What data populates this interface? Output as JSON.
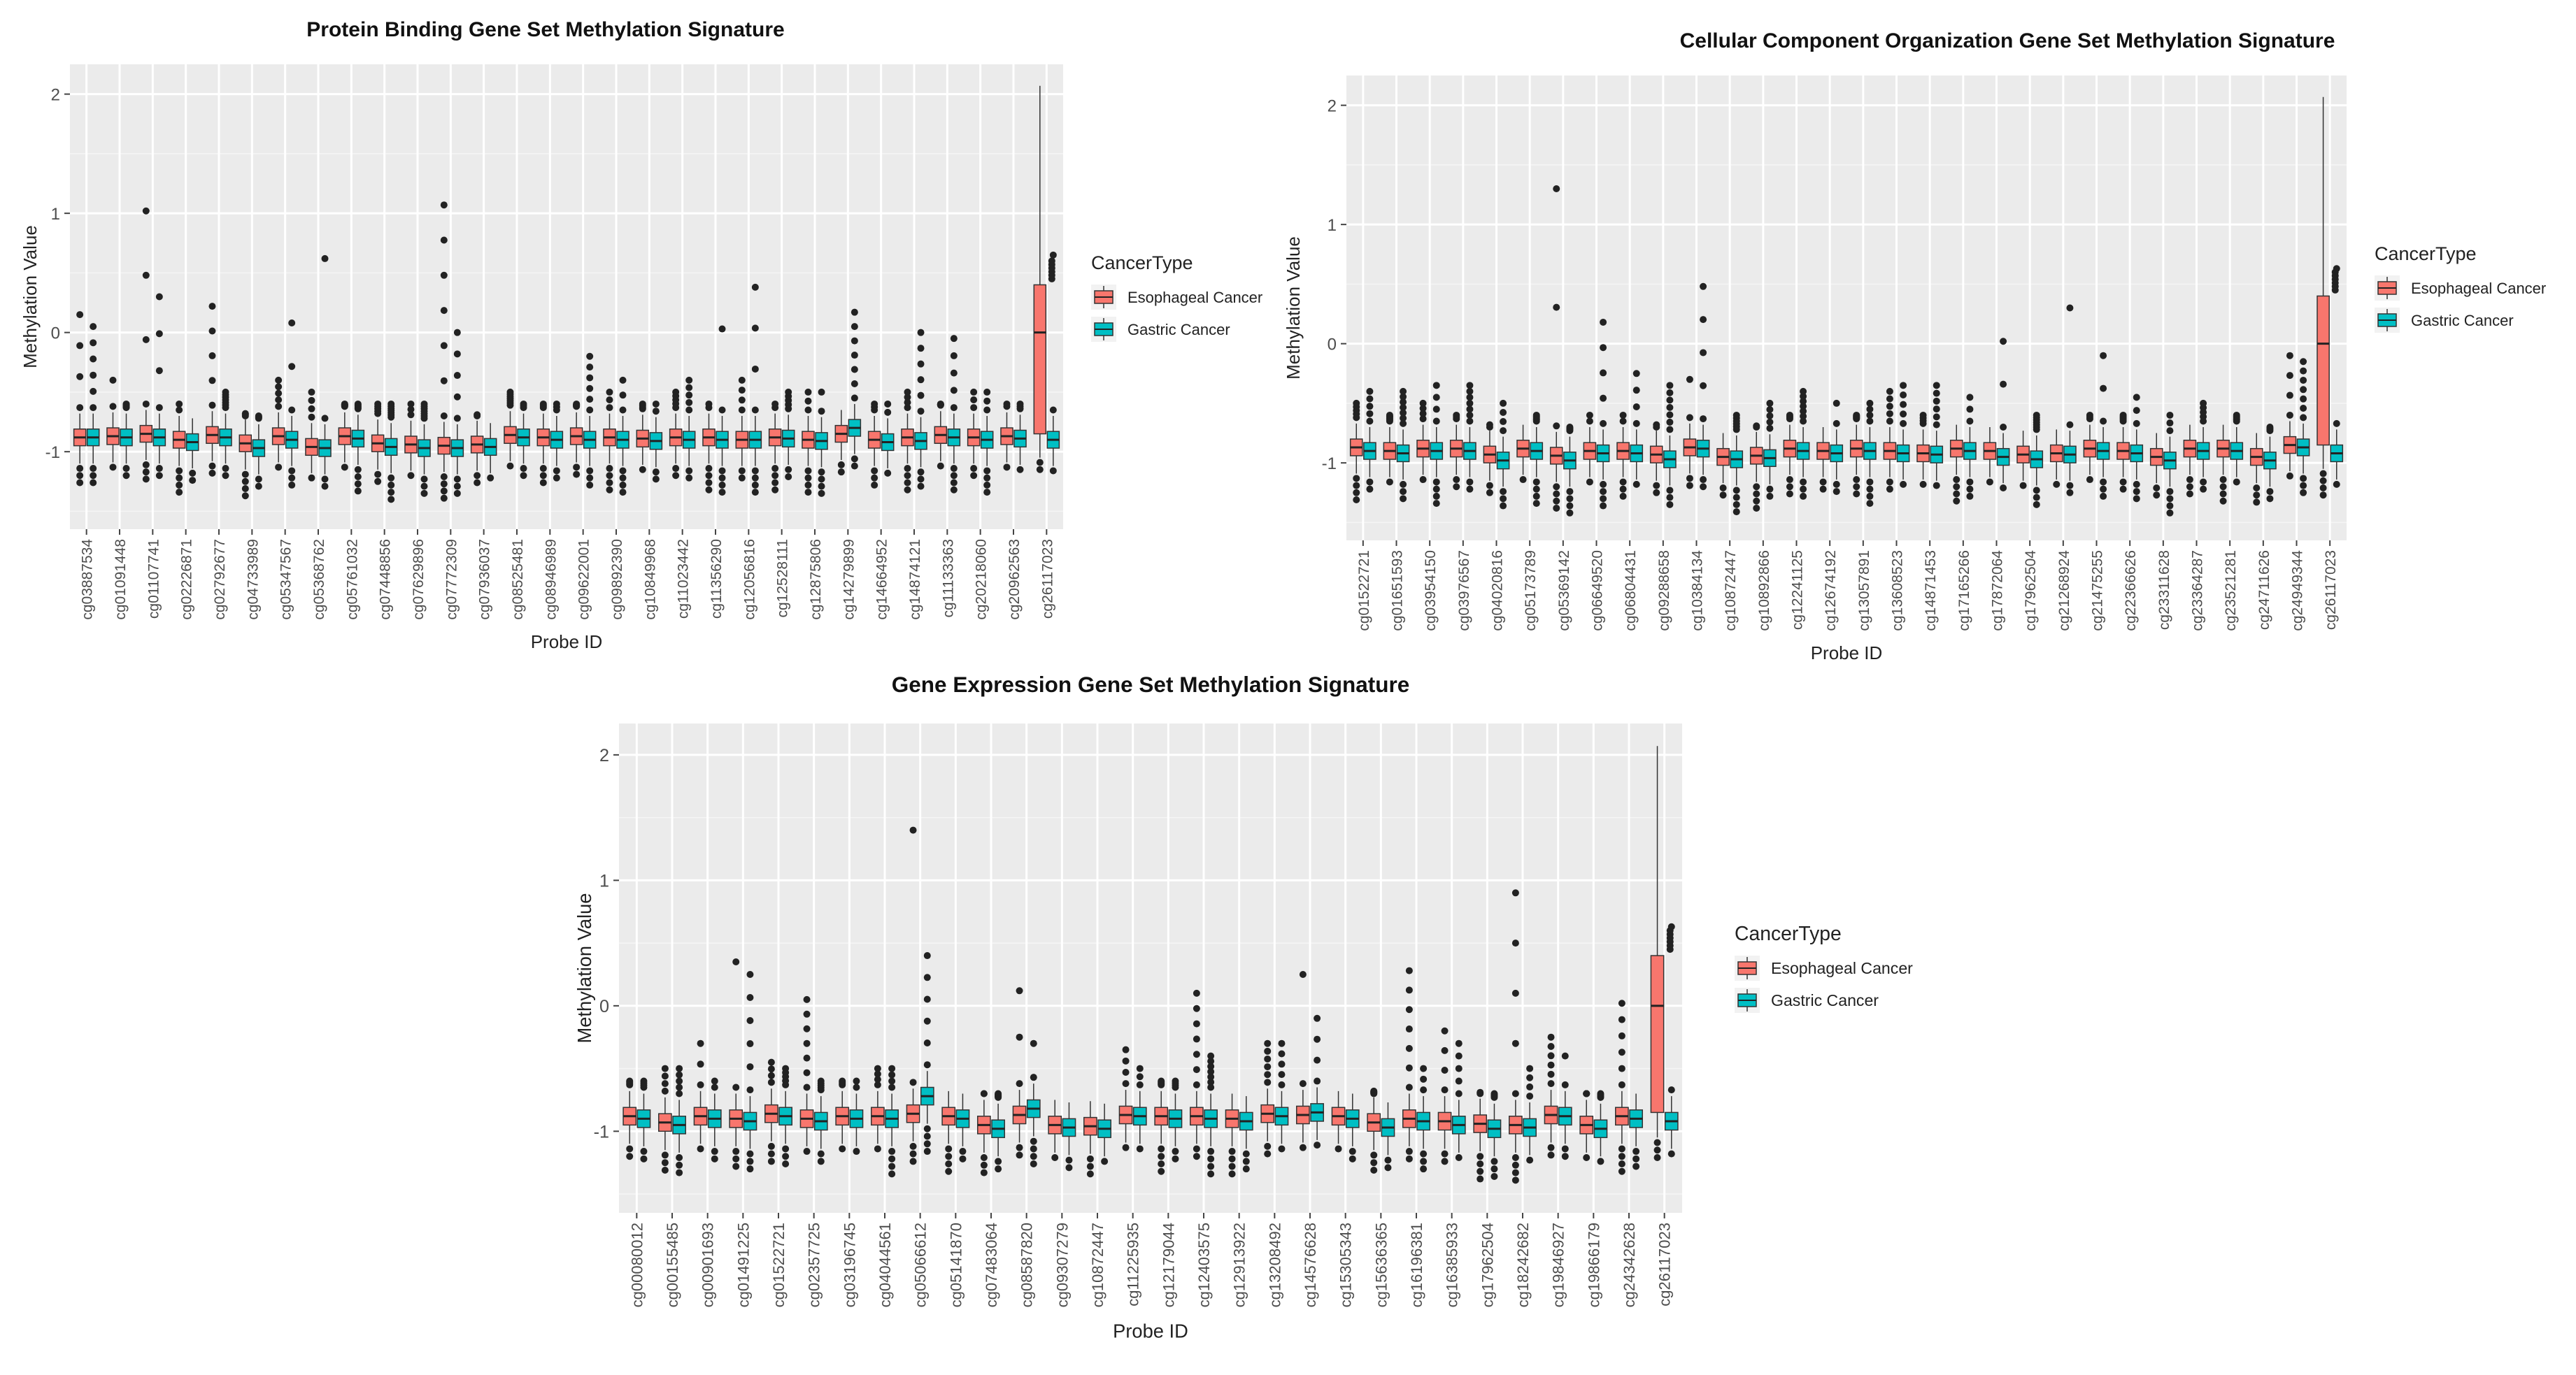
{
  "chart_data": [
    {
      "type": "boxplot",
      "title": "Protein Binding Gene Set Methylation Signature",
      "xlabel": "Probe ID",
      "ylabel": "Methylation Value",
      "ylim": [
        -1.65,
        2.25
      ],
      "yticks": [
        -1,
        0,
        1,
        2
      ],
      "legend_title": "CancerType",
      "series": [
        {
          "name": "Esophageal Cancer",
          "color": "#F8766D"
        },
        {
          "name": "Gastric Cancer",
          "color": "#00BFC4"
        }
      ],
      "categories": [
        "cg03887534",
        "cg01091448",
        "cg01107741",
        "cg02226871",
        "cg02792677",
        "cg04733989",
        "cg05347567",
        "cg05368762",
        "cg05761032",
        "cg07448856",
        "cg07629896",
        "cg07772309",
        "cg07936037",
        "cg08525481",
        "cg08946989",
        "cg09622001",
        "cg09892390",
        "cg10849968",
        "cg11023442",
        "cg11356290",
        "cg12056816",
        "cg12528111",
        "cg12875806",
        "cg14279899",
        "cg14664952",
        "cg14874121",
        "cg11133363",
        "cg20218060",
        "cg20962563",
        "cg26117023"
      ],
      "medians": {
        "Esophageal Cancer": [
          -0.88,
          -0.87,
          -0.85,
          -0.9,
          -0.86,
          -0.93,
          -0.87,
          -0.96,
          -0.87,
          -0.93,
          -0.94,
          -0.95,
          -0.94,
          -0.86,
          -0.88,
          -0.87,
          -0.88,
          -0.89,
          -0.88,
          -0.88,
          -0.9,
          -0.88,
          -0.9,
          -0.85,
          -0.9,
          -0.88,
          -0.86,
          -0.88,
          -0.87,
          0.0
        ],
        "Gastric Cancer": [
          -0.88,
          -0.88,
          -0.88,
          -0.92,
          -0.88,
          -0.97,
          -0.9,
          -0.97,
          -0.89,
          -0.96,
          -0.97,
          -0.97,
          -0.96,
          -0.88,
          -0.9,
          -0.9,
          -0.9,
          -0.91,
          -0.9,
          -0.9,
          -0.9,
          -0.89,
          -0.91,
          -0.8,
          -0.92,
          -0.91,
          -0.88,
          -0.9,
          -0.89,
          -0.9
        ]
      },
      "outlier_max": {
        "Esophageal Cancer": [
          0.15,
          -0.4,
          1.02,
          -0.6,
          0.22,
          -0.7,
          -0.4,
          -0.5,
          -0.6,
          -0.6,
          -0.6,
          1.07,
          -0.7,
          -0.5,
          -0.6,
          -0.6,
          -0.5,
          -0.6,
          -0.5,
          -0.6,
          -0.4,
          -0.6,
          -0.5,
          -0.7,
          -0.6,
          -0.5,
          -0.6,
          -0.5,
          -0.6,
          2.07
        ],
        "Gastric Cancer": [
          0.05,
          -0.6,
          0.3,
          -0.7,
          -0.5,
          -0.7,
          0.08,
          0.62,
          -0.6,
          -0.6,
          -0.6,
          0.0,
          -0.8,
          -0.6,
          -0.6,
          -0.2,
          -0.4,
          -0.6,
          -0.4,
          0.03,
          0.38,
          -0.5,
          -0.5,
          0.17,
          -0.6,
          0.0,
          -0.05,
          -0.5,
          -0.6,
          0.65
        ]
      }
    },
    {
      "type": "boxplot",
      "title": "Cellular Component Organization Gene Set Methylation Signature",
      "xlabel": "Probe ID",
      "ylabel": "Methylation Value",
      "ylim": [
        -1.65,
        2.25
      ],
      "yticks": [
        -1,
        0,
        1,
        2
      ],
      "legend_title": "CancerType",
      "series": [
        {
          "name": "Esophageal Cancer",
          "color": "#F8766D"
        },
        {
          "name": "Gastric Cancer",
          "color": "#00BFC4"
        }
      ],
      "categories": [
        "cg01522721",
        "cg01651593",
        "cg03954150",
        "cg03976567",
        "cg04020816",
        "cg05173789",
        "cg05369142",
        "cg06649520",
        "cg06804431",
        "cg09288658",
        "cg10384134",
        "cg10872447",
        "cg10892866",
        "cg12241125",
        "cg12674192",
        "cg13057891",
        "cg13608523",
        "cg14871453",
        "cg17165266",
        "cg17872064",
        "cg17962504",
        "cg21268924",
        "cg21475255",
        "cg22366626",
        "cg23311628",
        "cg23364287",
        "cg23521281",
        "cg24711626",
        "cg24949344",
        "cg26117023"
      ],
      "medians": {
        "Esophageal Cancer": [
          -0.87,
          -0.9,
          -0.88,
          -0.88,
          -0.93,
          -0.88,
          -0.94,
          -0.9,
          -0.9,
          -0.93,
          -0.87,
          -0.95,
          -0.94,
          -0.88,
          -0.9,
          -0.88,
          -0.9,
          -0.92,
          -0.88,
          -0.9,
          -0.93,
          -0.92,
          -0.88,
          -0.9,
          -0.95,
          -0.88,
          -0.88,
          -0.95,
          -0.85,
          0.0
        ],
        "Gastric Cancer": [
          -0.9,
          -0.92,
          -0.9,
          -0.9,
          -0.98,
          -0.9,
          -0.98,
          -0.92,
          -0.92,
          -0.97,
          -0.88,
          -0.97,
          -0.96,
          -0.9,
          -0.92,
          -0.9,
          -0.92,
          -0.93,
          -0.9,
          -0.95,
          -0.97,
          -0.93,
          -0.9,
          -0.92,
          -0.98,
          -0.9,
          -0.9,
          -0.98,
          -0.87,
          -0.92
        ]
      },
      "outlier_max": {
        "Esophageal Cancer": [
          -0.5,
          -0.6,
          -0.5,
          -0.6,
          -0.7,
          -0.7,
          1.3,
          -0.6,
          -0.6,
          -0.7,
          -0.3,
          -0.8,
          -0.7,
          -0.6,
          -0.7,
          -0.6,
          -0.4,
          -0.6,
          -0.7,
          -0.7,
          -0.8,
          -0.7,
          -0.6,
          -0.6,
          -0.8,
          -0.7,
          -0.7,
          -0.8,
          -0.1,
          2.07
        ],
        "Gastric Cancer": [
          -0.4,
          -0.4,
          -0.35,
          -0.35,
          -0.5,
          -0.6,
          -0.7,
          0.18,
          -0.25,
          -0.35,
          0.48,
          -0.6,
          -0.5,
          -0.4,
          -0.5,
          -0.5,
          -0.35,
          -0.35,
          -0.45,
          0.02,
          -0.6,
          0.3,
          -0.1,
          -0.45,
          -0.6,
          -0.5,
          -0.6,
          -0.7,
          -0.15,
          0.63
        ]
      }
    },
    {
      "type": "boxplot",
      "title": "Gene Expression Gene Set Methylation Signature",
      "xlabel": "Probe ID",
      "ylabel": "Methylation Value",
      "ylim": [
        -1.65,
        2.25
      ],
      "yticks": [
        -1,
        0,
        1,
        2
      ],
      "legend_title": "CancerType",
      "series": [
        {
          "name": "Esophageal Cancer",
          "color": "#F8766D"
        },
        {
          "name": "Gastric Cancer",
          "color": "#00BFC4"
        }
      ],
      "categories": [
        "cg00080012",
        "cg00155485",
        "cg00901693",
        "cg01491225",
        "cg01522721",
        "cg02357725",
        "cg03196745",
        "cg04044561",
        "cg05066612",
        "cg05141870",
        "cg07483064",
        "cg08587820",
        "cg09307279",
        "cg10872447",
        "cg11225935",
        "cg12179044",
        "cg12403575",
        "cg12913922",
        "cg13208492",
        "cg14576628",
        "cg15305343",
        "cg15636365",
        "cg16196381",
        "cg16385933",
        "cg17962504",
        "cg18242682",
        "cg19846927",
        "cg19866179",
        "cg24342628",
        "cg26117023"
      ],
      "medians": {
        "Esophageal Cancer": [
          -0.88,
          -0.93,
          -0.88,
          -0.9,
          -0.86,
          -0.9,
          -0.88,
          -0.88,
          -0.86,
          -0.88,
          -0.95,
          -0.87,
          -0.95,
          -0.96,
          -0.87,
          -0.88,
          -0.88,
          -0.9,
          -0.86,
          -0.87,
          -0.88,
          -0.93,
          -0.9,
          -0.92,
          -0.94,
          -0.95,
          -0.87,
          -0.95,
          -0.88,
          0.0
        ],
        "Gastric Cancer": [
          -0.9,
          -0.95,
          -0.9,
          -0.92,
          -0.88,
          -0.92,
          -0.9,
          -0.9,
          -0.72,
          -0.9,
          -0.98,
          -0.82,
          -0.97,
          -0.98,
          -0.88,
          -0.9,
          -0.9,
          -0.92,
          -0.88,
          -0.85,
          -0.9,
          -0.97,
          -0.92,
          -0.95,
          -0.98,
          -0.97,
          -0.88,
          -0.98,
          -0.9,
          -0.92
        ]
      },
      "outlier_max": {
        "Esophageal Cancer": [
          -0.6,
          -0.5,
          -0.3,
          0.35,
          -0.45,
          0.05,
          -0.6,
          -0.5,
          1.4,
          -0.7,
          -0.7,
          0.12,
          -0.8,
          -0.8,
          -0.35,
          -0.6,
          0.1,
          -0.8,
          -0.3,
          0.25,
          -0.7,
          -0.7,
          0.28,
          -0.2,
          -0.7,
          0.9,
          -0.25,
          -0.7,
          0.02,
          2.07
        ],
        "Gastric Cancer": [
          -0.6,
          -0.5,
          -0.6,
          0.25,
          -0.5,
          -0.6,
          -0.6,
          -0.5,
          0.4,
          -0.7,
          -0.7,
          -0.3,
          -0.8,
          -0.8,
          -0.5,
          -0.6,
          -0.4,
          -0.8,
          -0.3,
          -0.1,
          -0.7,
          -0.8,
          -0.5,
          -0.3,
          -0.7,
          -0.5,
          -0.4,
          -0.7,
          -0.7,
          0.63
        ]
      }
    }
  ]
}
